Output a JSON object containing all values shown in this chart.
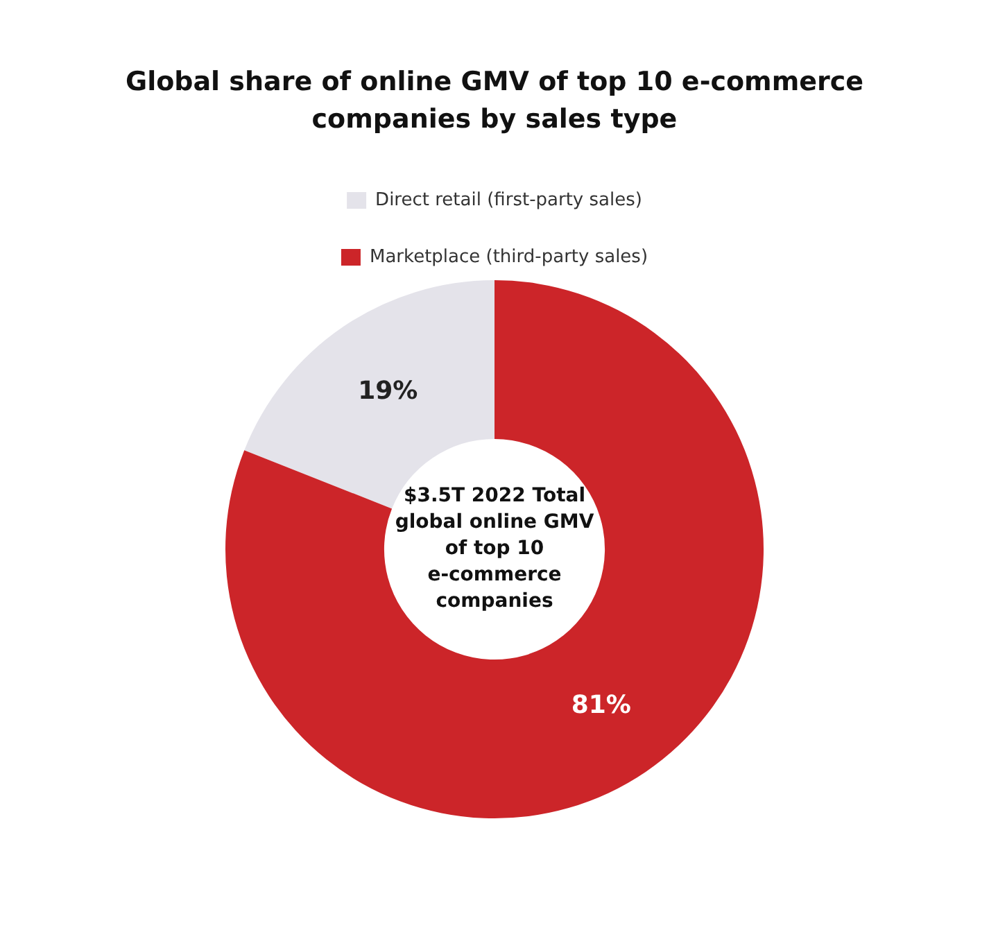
{
  "chart_data": {
    "type": "donut",
    "title": "Global share of online GMV of top 10 e-commerce companies by sales type",
    "categories": [
      "Direct retail (first-party sales)",
      "Marketplace (third-party sales)"
    ],
    "values": [
      19,
      81
    ],
    "colors": [
      "#e4e3ea",
      "#cc2529"
    ],
    "value_labels": [
      "19%",
      "81%"
    ],
    "annotations": [
      "$3.5T 2022 Total global online GMV of top 10 e-commerce companies"
    ],
    "legend": "top"
  }
}
